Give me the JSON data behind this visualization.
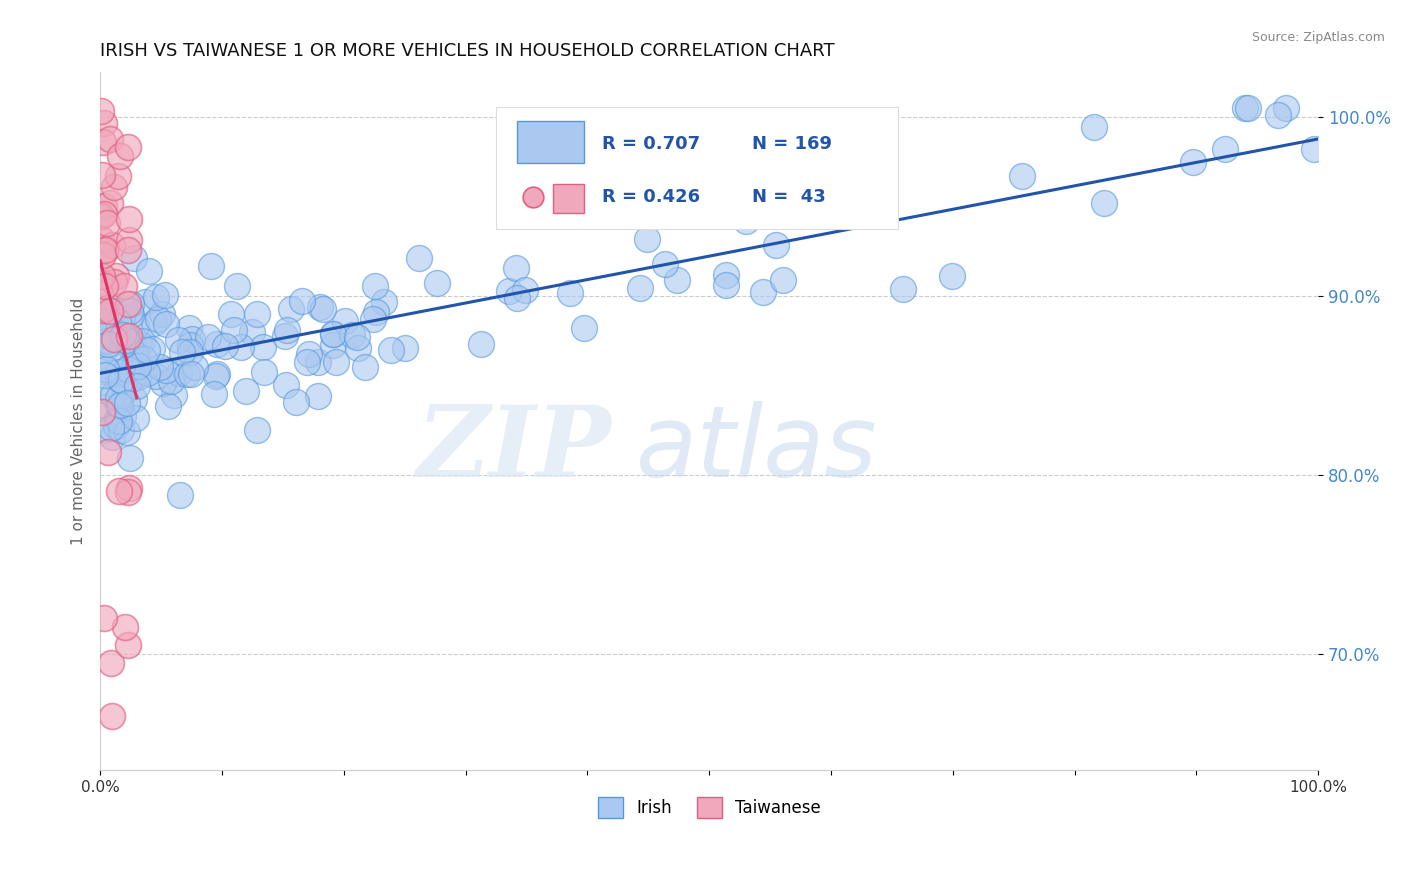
{
  "title": "IRISH VS TAIWANESE 1 OR MORE VEHICLES IN HOUSEHOLD CORRELATION CHART",
  "source_text": "Source: ZipAtlas.com",
  "ylabel": "1 or more Vehicles in Household",
  "xlim": [
    0.0,
    1.0
  ],
  "ylim": [
    0.635,
    1.025
  ],
  "yticks": [
    0.7,
    0.8,
    0.9,
    1.0
  ],
  "ytick_labels": [
    "70.0%",
    "80.0%",
    "90.0%",
    "100.0%"
  ],
  "xticks": [
    0.0,
    0.1,
    0.2,
    0.3,
    0.4,
    0.5,
    0.6,
    0.7,
    0.8,
    0.9,
    1.0
  ],
  "xtick_labels": [
    "0.0%",
    "",
    "",
    "",
    "",
    "",
    "",
    "",
    "",
    "",
    "100.0%"
  ],
  "irish_color": "#aac8f0",
  "taiwanese_color": "#f0a8bc",
  "irish_edge_color": "#5599dd",
  "taiwanese_edge_color": "#e06080",
  "trend_irish_color": "#2255aa",
  "trend_taiwanese_color": "#dd3366",
  "legend_irish_label": "R = 0.707",
  "legend_irish_n": "N = 169",
  "legend_taiwanese_label": "R = 0.426",
  "legend_taiwanese_n": "N =  43",
  "legend_bottom_irish": "Irish",
  "legend_bottom_taiwanese": "Taiwanese",
  "watermark_zip": "ZIP",
  "watermark_atlas": "atlas",
  "background_color": "#ffffff",
  "grid_color": "#cccccc",
  "title_fontsize": 13,
  "axis_label_fontsize": 11,
  "ytick_color": "#4488cc",
  "xtick_color": "#333333"
}
